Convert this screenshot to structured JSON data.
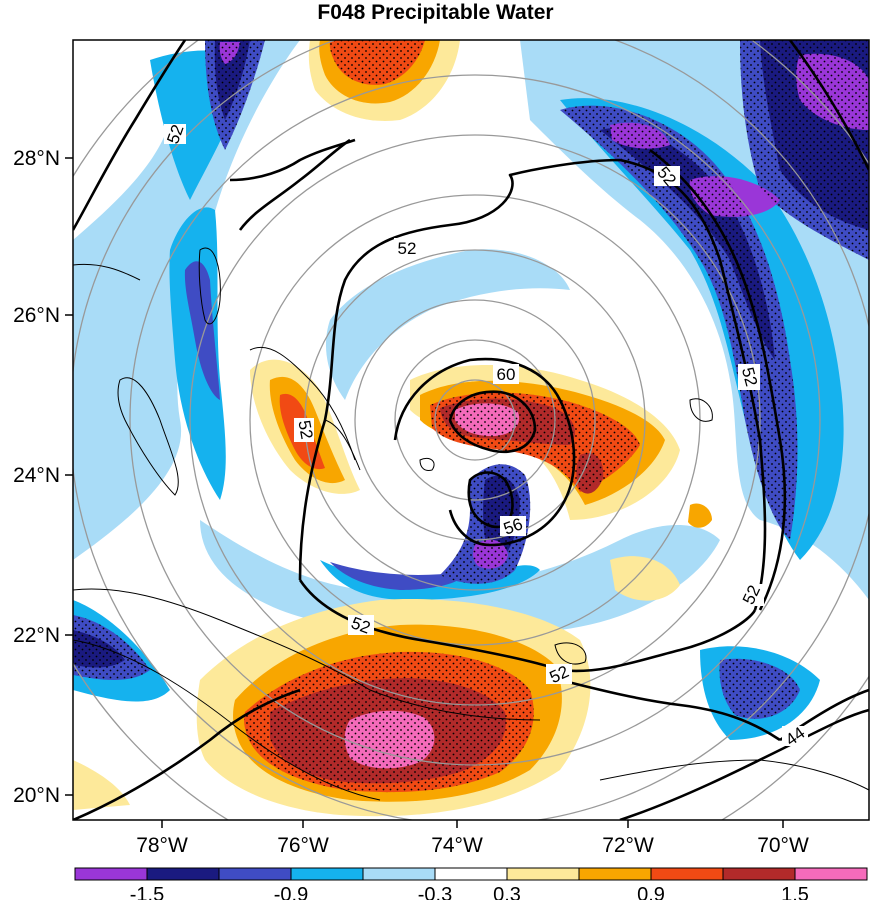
{
  "title": "F048 Precipitable Water",
  "map": {
    "lon_labels": [
      "78°W",
      "76°W",
      "74°W",
      "72°W",
      "70°W"
    ],
    "lat_labels": [
      "28°N",
      "26°N",
      "24°N",
      "22°N",
      "20°N"
    ],
    "contour_labels": [
      "52",
      "52",
      "52",
      "52",
      "52",
      "52",
      "52",
      "60",
      "56",
      "44"
    ]
  },
  "colorbar": {
    "colors": [
      "#9a36d8",
      "#1a1a80",
      "#3f4cc4",
      "#15b2ee",
      "#a9dcf7",
      "#ffffff",
      "#fde99a",
      "#f8a600",
      "#f14a14",
      "#b22a2a",
      "#f56bbb"
    ],
    "labels": [
      "-1.5",
      "-0.9",
      "-0.3",
      "0.3",
      "0.9",
      "1.5"
    ]
  }
}
